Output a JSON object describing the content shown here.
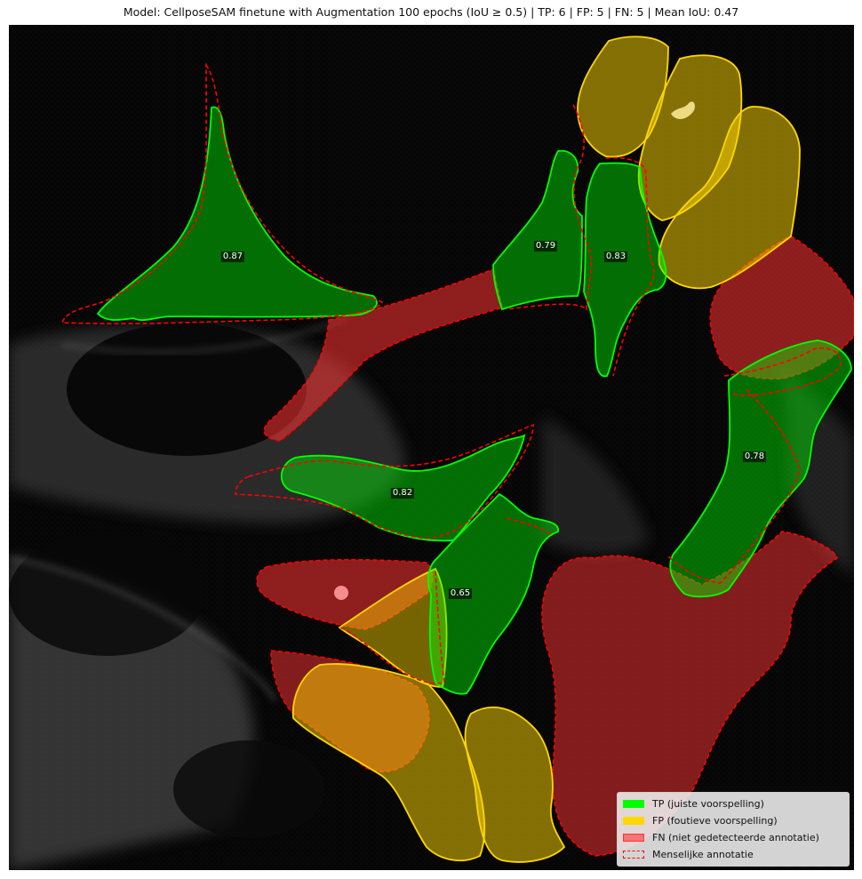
{
  "title": "Model: CellposeSAM finetune with Augmentation 100 epochs (IoU ≥ 0.5) | TP: 6 | FP: 5 | FN: 5 | Mean IoU: 0.47",
  "colors": {
    "tp": "#00ff00",
    "fp": "#ffd700",
    "fn": "#ff3333",
    "annotation": "#ff0000"
  },
  "iou_labels": [
    "0.87",
    "0.79",
    "0.83",
    "0.78",
    "0.82",
    "0.65"
  ],
  "legend": {
    "tp": "TP (juiste voorspelling)",
    "fp": "FP (foutieve voorspelling)",
    "fn": "FN (niet gedetecteerde annotatie)",
    "annotation": "Menselijke annotatie"
  }
}
